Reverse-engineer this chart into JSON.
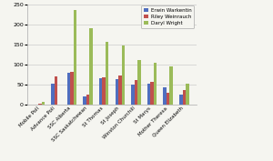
{
  "categories": [
    "Mobile Poll",
    "Advance Poll",
    "SSC Alberta",
    "SSC Saskatchewan",
    "St Thomas",
    "St Joseph",
    "Winston Churchill",
    "St Marys",
    "Mother Theresa",
    "Queen Elizabeth"
  ],
  "series": {
    "Erwin Warkentin": [
      1,
      52,
      79,
      20,
      67,
      65,
      51,
      52,
      44,
      25
    ],
    "Riley Weinrauch": [
      2,
      70,
      81,
      25,
      68,
      74,
      61,
      58,
      30,
      37
    ],
    "Daryl Wright": [
      8,
      0,
      237,
      192,
      157,
      148,
      111,
      105,
      96,
      52
    ]
  },
  "colors": {
    "Erwin Warkentin": "#4F6EBF",
    "Riley Weinrauch": "#C0504D",
    "Daryl Wright": "#9BBB59"
  },
  "ylim": [
    0,
    250
  ],
  "yticks": [
    0,
    50,
    100,
    150,
    200,
    250
  ],
  "legend_order": [
    "Erwin Warkentin",
    "Riley Weinrauch",
    "Daryl Wright"
  ],
  "background_color": "#F5F5F0",
  "plot_bg_color": "#F5F5F0",
  "bar_width": 0.2
}
